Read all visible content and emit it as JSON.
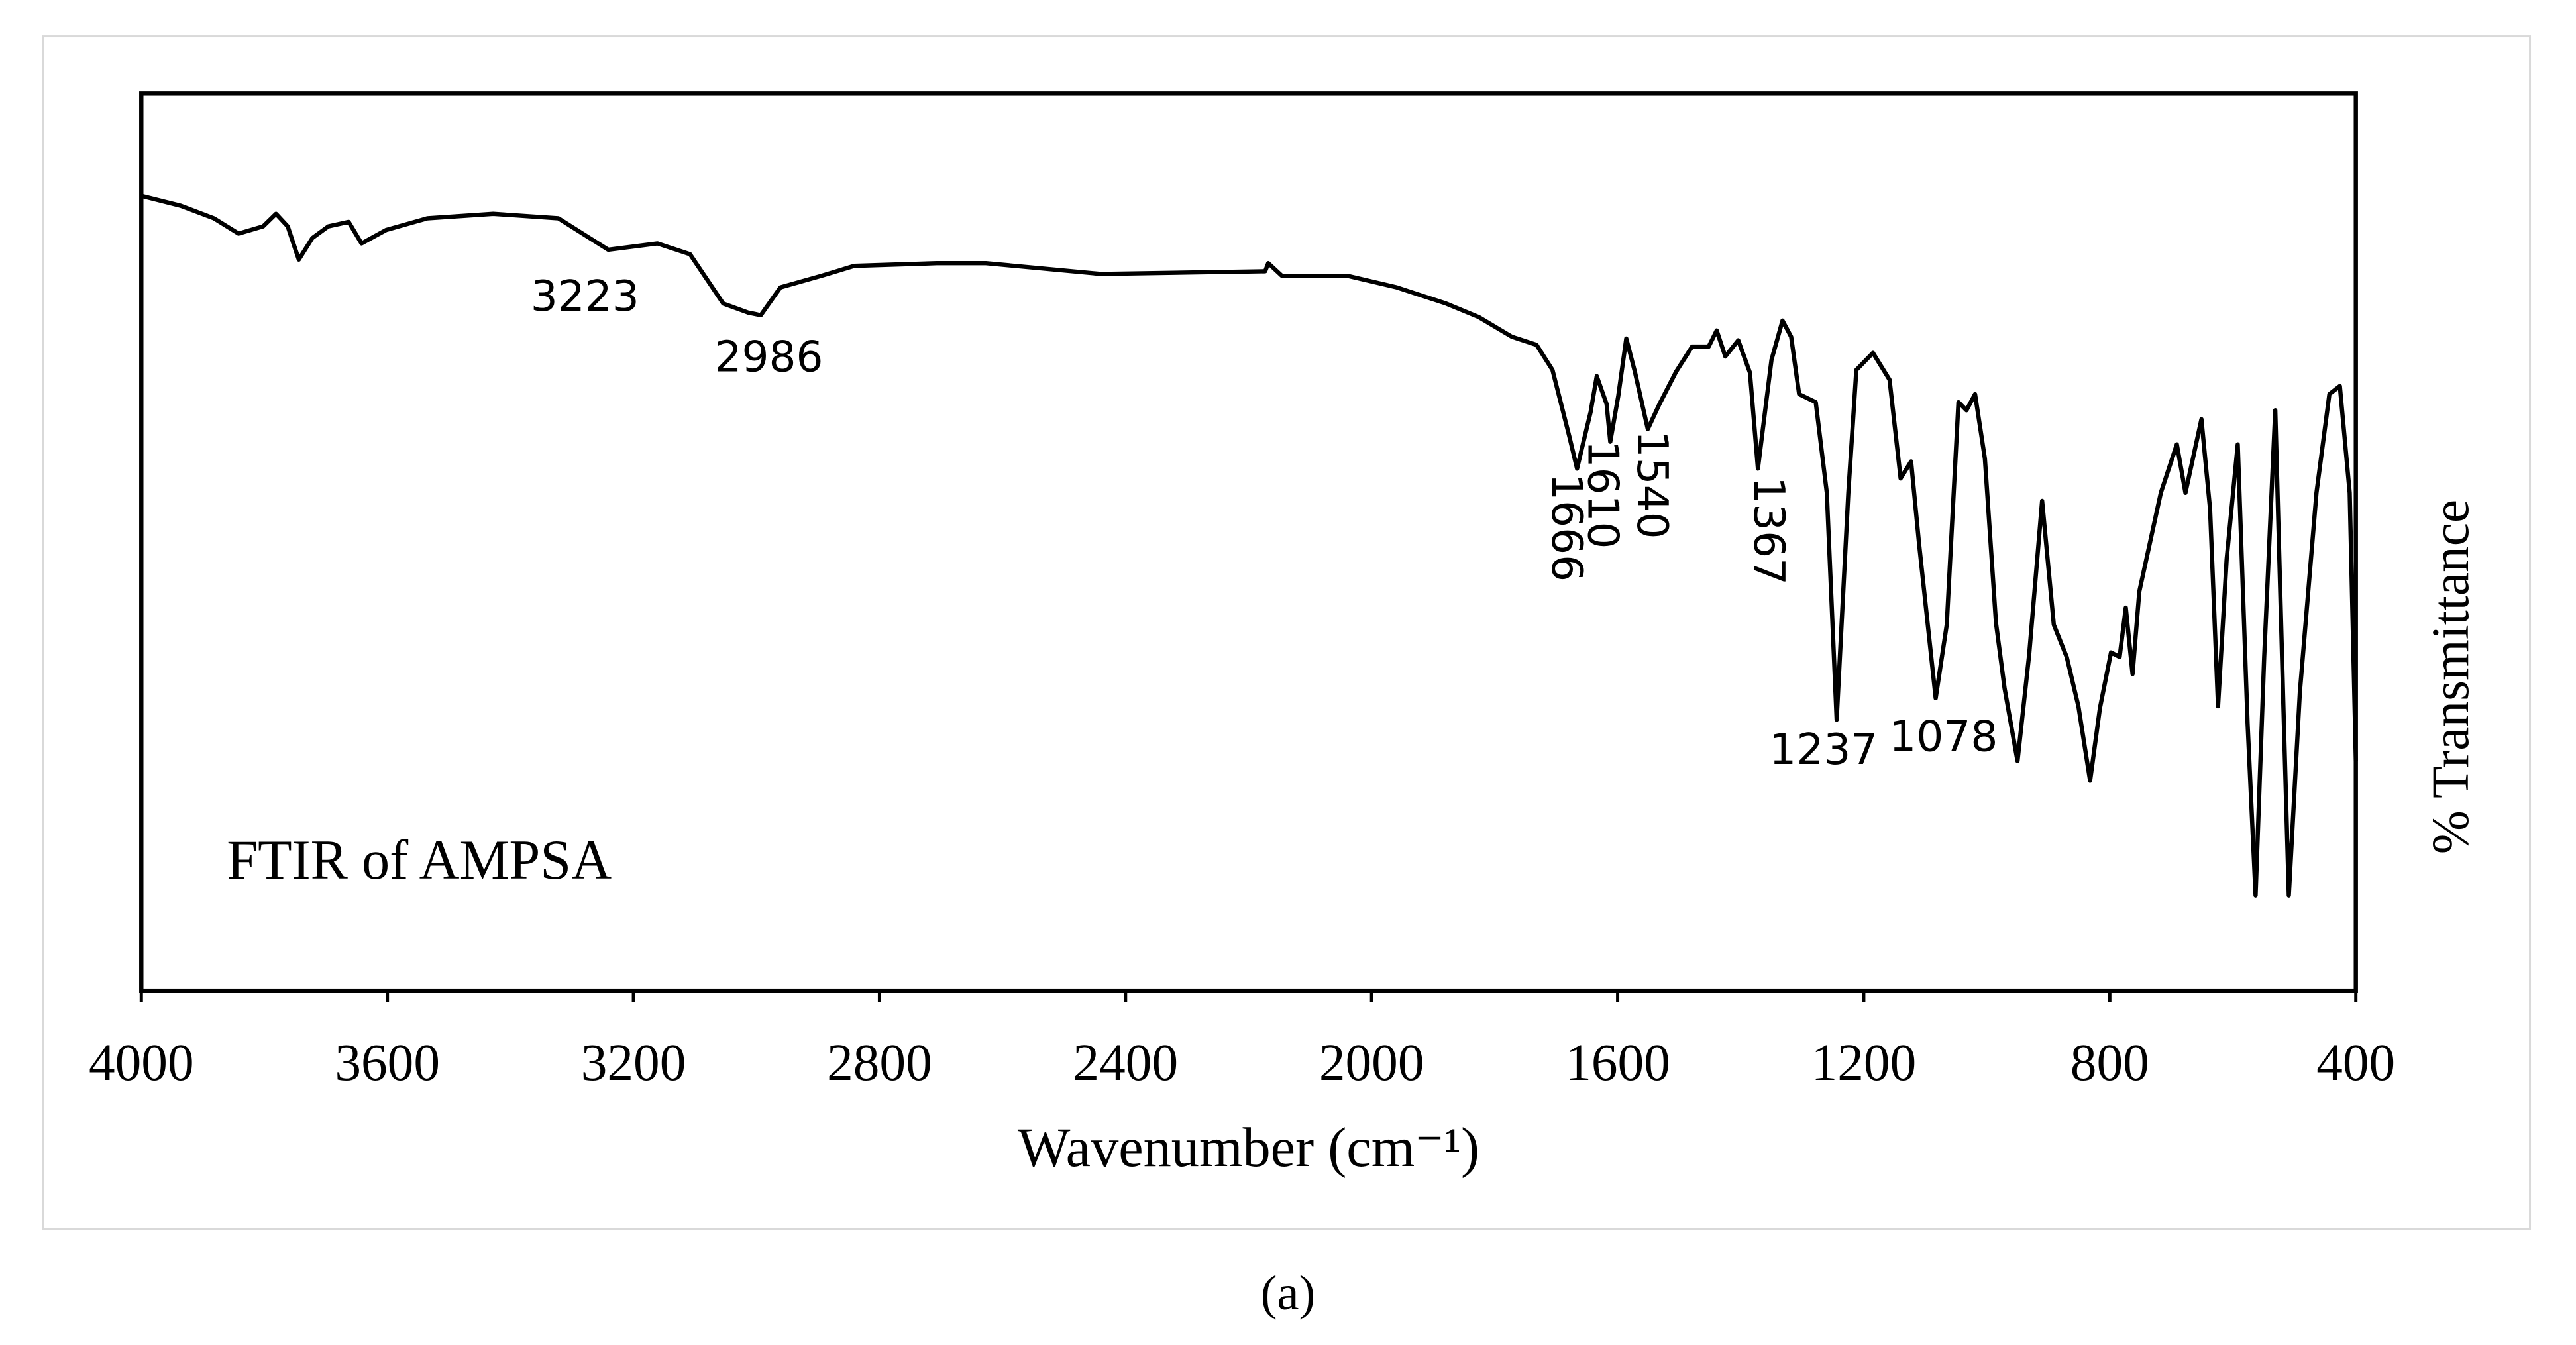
{
  "chart_data": {
    "type": "line",
    "annotations": [
      "3223",
      "2986",
      "1666",
      "1610",
      "1540",
      "1367",
      "1237",
      "1078",
      "FTIR of AMPSA"
    ],
    "xlabel": "Wavenumber (cm⁻¹)",
    "ylabel": "% Transmittance",
    "caption": "(a)",
    "color": "#000000",
    "xlim": [
      4000,
      400
    ],
    "xticks": [
      4000,
      3600,
      3200,
      2800,
      2400,
      2000,
      1600,
      1200,
      800,
      400
    ],
    "ylim": [
      0,
      100
    ],
    "x": [
      4000,
      3936,
      3882,
      3842,
      3802,
      3781,
      3762,
      3744,
      3722,
      3696,
      3663,
      3642,
      3602,
      3535,
      3428,
      3322,
      3241,
      3161,
      3108,
      3054,
      3014,
      2993,
      2961,
      2894,
      2841,
      2707,
      2627,
      2440,
      2173,
      2168,
      2146,
      2040,
      1959,
      1879,
      1826,
      1772,
      1732,
      1706,
      1679,
      1666,
      1644,
      1634,
      1618,
      1612,
      1599,
      1586,
      1572,
      1551,
      1532,
      1505,
      1479,
      1452,
      1439,
      1425,
      1404,
      1385,
      1372,
      1350,
      1332,
      1318,
      1305,
      1278,
      1260,
      1244,
      1225,
      1212,
      1185,
      1158,
      1140,
      1123,
      1110,
      1083,
      1065,
      1046,
      1033,
      1019,
      1003,
      985,
      971,
      950,
      931,
      910,
      891,
      870,
      851,
      832,
      816,
      798,
      784,
      774,
      763,
      752,
      717,
      691,
      677,
      651,
      637,
      624,
      610,
      592,
      576,
      563,
      549,
      531,
      517,
      509,
      491,
      464,
      443,
      426,
      410,
      400
    ],
    "values": [
      88.6,
      87.5,
      86.1,
      84.4,
      85.2,
      86.6,
      85.2,
      81.5,
      83.9,
      85.2,
      85.7,
      83.3,
      84.8,
      86.1,
      86.6,
      86.1,
      82.6,
      83.3,
      82.1,
      76.6,
      75.6,
      75.3,
      78.4,
      79.7,
      80.8,
      81.1,
      81.1,
      79.9,
      80.2,
      81.1,
      79.7,
      79.7,
      78.4,
      76.6,
      75.1,
      72.9,
      72.0,
      69.2,
      61.9,
      58.2,
      64.5,
      68.5,
      65.4,
      61.2,
      66.3,
      72.7,
      69.0,
      62.6,
      65.4,
      69.0,
      71.8,
      71.8,
      73.6,
      70.7,
      72.5,
      68.9,
      58.2,
      70.3,
      74.7,
      72.9,
      66.5,
      65.6,
      55.5,
      30.2,
      55.5,
      69.2,
      71.1,
      68.1,
      57.1,
      59.0,
      49.8,
      32.6,
      40.8,
      65.6,
      64.7,
      66.5,
      59.3,
      41.0,
      33.7,
      25.6,
      37.5,
      54.6,
      40.8,
      37.2,
      31.7,
      23.4,
      31.5,
      37.7,
      37.2,
      42.7,
      35.3,
      44.5,
      55.5,
      60.9,
      55.5,
      63.7,
      53.7,
      31.7,
      48.1,
      60.9,
      29.8,
      10.6,
      37.2,
      64.7,
      29.8,
      10.6,
      33.3,
      55.5,
      66.5,
      67.4,
      55.5,
      25.6
    ]
  }
}
